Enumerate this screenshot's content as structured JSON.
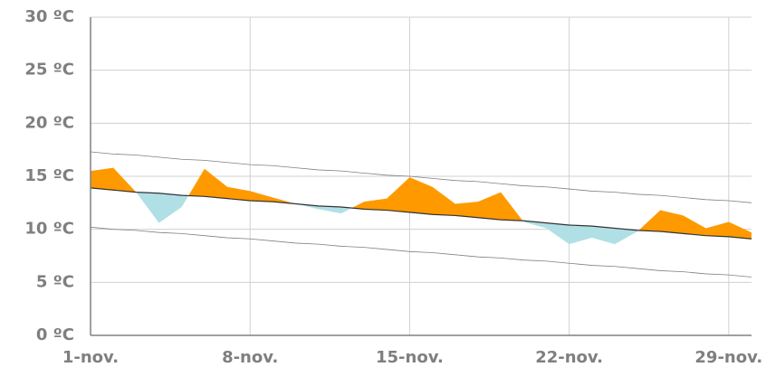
{
  "chart_data": {
    "type": "band-line",
    "categories": [
      "1-nov.",
      null,
      null,
      null,
      null,
      null,
      null,
      "8-nov.",
      null,
      null,
      null,
      null,
      null,
      null,
      "15-nov.",
      null,
      null,
      null,
      null,
      null,
      null,
      "22-nov.",
      null,
      null,
      null,
      null,
      null,
      null,
      "29-nov.",
      null
    ],
    "series": [
      {
        "color": "#ff9900",
        "below_color": "#b0e0e6",
        "values": [
          15.5,
          15.8,
          13.5,
          10.6,
          12.1,
          15.7,
          14.0,
          13.6,
          13.0,
          12.4,
          11.9,
          11.5,
          12.6,
          12.9,
          14.9,
          14.0,
          12.4,
          12.6,
          13.5,
          10.7,
          10.1,
          8.6,
          9.2,
          8.6,
          9.8,
          11.8,
          11.3,
          10.1,
          10.7,
          9.7
        ]
      },
      {
        "color": "#333333",
        "values": [
          13.9,
          13.7,
          13.5,
          13.4,
          13.2,
          13.1,
          12.9,
          12.7,
          12.6,
          12.4,
          12.2,
          12.1,
          11.9,
          11.8,
          11.6,
          11.4,
          11.3,
          11.1,
          10.9,
          10.8,
          10.6,
          10.4,
          10.3,
          10.1,
          9.9,
          9.8,
          9.6,
          9.4,
          9.3,
          9.1
        ]
      },
      {
        "color": "#808080",
        "values": [
          17.3,
          17.1,
          17.0,
          16.8,
          16.6,
          16.5,
          16.3,
          16.1,
          16.0,
          15.8,
          15.6,
          15.5,
          15.3,
          15.1,
          15.0,
          14.8,
          14.6,
          14.5,
          14.3,
          14.1,
          14.0,
          13.8,
          13.6,
          13.5,
          13.3,
          13.2,
          13.0,
          12.8,
          12.7,
          12.5
        ]
      },
      {
        "color": "#808080",
        "values": [
          10.2,
          10.0,
          9.9,
          9.7,
          9.6,
          9.4,
          9.2,
          9.1,
          8.9,
          8.7,
          8.6,
          8.4,
          8.3,
          8.1,
          7.9,
          7.8,
          7.6,
          7.4,
          7.3,
          7.1,
          7.0,
          6.8,
          6.6,
          6.5,
          6.3,
          6.1,
          6.0,
          5.8,
          5.7,
          5.5
        ]
      }
    ],
    "ylim": [
      0,
      30
    ],
    "yticks": [
      {
        "value": 0,
        "label": "0 ºC"
      },
      {
        "value": 5,
        "label": "5 ºC"
      },
      {
        "value": 10,
        "label": "10 ºC"
      },
      {
        "value": 15,
        "label": "15 ºC"
      },
      {
        "value": 20,
        "label": "20 ºC"
      },
      {
        "value": 25,
        "label": "25 ºC"
      },
      {
        "value": 30,
        "label": "30 ºC"
      }
    ],
    "grid": true
  }
}
